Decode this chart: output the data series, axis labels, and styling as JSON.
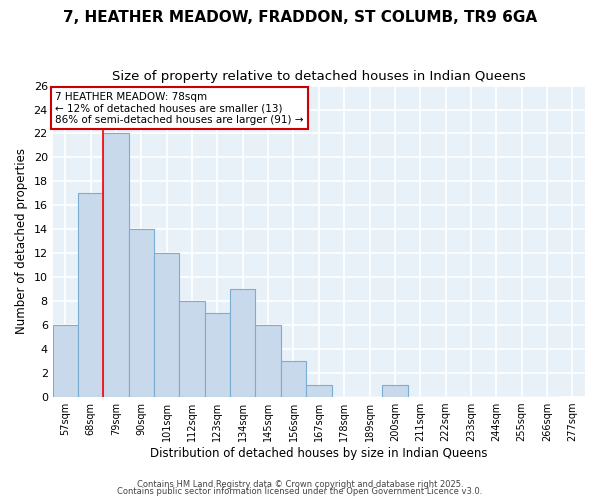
{
  "title1": "7, HEATHER MEADOW, FRADDON, ST COLUMB, TR9 6GA",
  "title2": "Size of property relative to detached houses in Indian Queens",
  "xlabel": "Distribution of detached houses by size in Indian Queens",
  "ylabel": "Number of detached properties",
  "bins": [
    57,
    68,
    79,
    90,
    101,
    112,
    123,
    134,
    145,
    156,
    167,
    178,
    189,
    200,
    211,
    222,
    233,
    244,
    255,
    266,
    277
  ],
  "counts": [
    6,
    17,
    22,
    14,
    12,
    8,
    7,
    9,
    6,
    3,
    1,
    0,
    0,
    1,
    0,
    0,
    0,
    0,
    0,
    0
  ],
  "bar_color": "#c8d9ec",
  "bar_edge_color": "#7aadd4",
  "red_line_x": 79,
  "annotation_line1": "7 HEATHER MEADOW: 78sqm",
  "annotation_line2": "← 12% of detached houses are smaller (13)",
  "annotation_line3": "86% of semi-detached houses are larger (91) →",
  "annotation_box_color": "#ffffff",
  "annotation_box_edge_color": "#cc0000",
  "footer1": "Contains HM Land Registry data © Crown copyright and database right 2025.",
  "footer2": "Contains public sector information licensed under the Open Government Licence v3.0.",
  "ylim": [
    0,
    26
  ],
  "yticks": [
    0,
    2,
    4,
    6,
    8,
    10,
    12,
    14,
    16,
    18,
    20,
    22,
    24,
    26
  ],
  "fig_bg_color": "#ffffff",
  "plot_bg_color": "#e8f0f8",
  "grid_color": "#ffffff",
  "title1_fontsize": 11,
  "title2_fontsize": 9.5,
  "bin_width": 11
}
